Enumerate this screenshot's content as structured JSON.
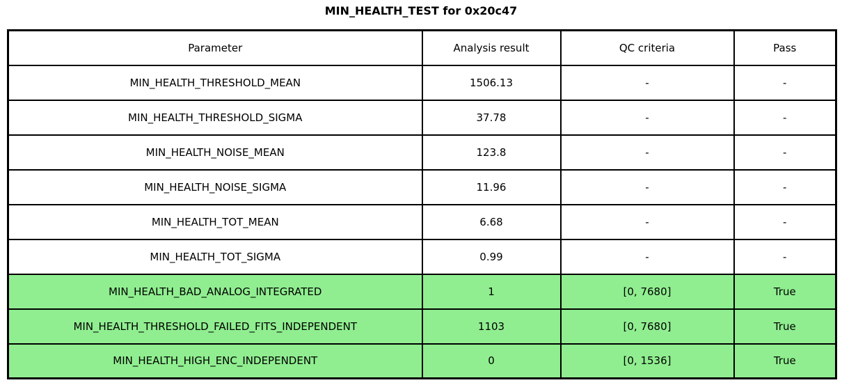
{
  "title": "MIN_HEALTH_TEST for 0x20c47",
  "chart_data": {
    "type": "table",
    "title": "MIN_HEALTH_TEST for 0x20c47",
    "columns": [
      "Parameter",
      "Analysis result",
      "QC criteria",
      "Pass"
    ],
    "rows": [
      {
        "cells": [
          "MIN_HEALTH_THRESHOLD_MEAN",
          "1506.13",
          "-",
          "-"
        ],
        "highlighted": false
      },
      {
        "cells": [
          "MIN_HEALTH_THRESHOLD_SIGMA",
          "37.78",
          "-",
          "-"
        ],
        "highlighted": false
      },
      {
        "cells": [
          "MIN_HEALTH_NOISE_MEAN",
          "123.8",
          "-",
          "-"
        ],
        "highlighted": false
      },
      {
        "cells": [
          "MIN_HEALTH_NOISE_SIGMA",
          "11.96",
          "-",
          "-"
        ],
        "highlighted": false
      },
      {
        "cells": [
          "MIN_HEALTH_TOT_MEAN",
          "6.68",
          "-",
          "-"
        ],
        "highlighted": false
      },
      {
        "cells": [
          "MIN_HEALTH_TOT_SIGMA",
          "0.99",
          "-",
          "-"
        ],
        "highlighted": false
      },
      {
        "cells": [
          "MIN_HEALTH_BAD_ANALOG_INTEGRATED",
          "1",
          "[0, 7680]",
          "True"
        ],
        "highlighted": true
      },
      {
        "cells": [
          "MIN_HEALTH_THRESHOLD_FAILED_FITS_INDEPENDENT",
          "1103",
          "[0, 7680]",
          "True"
        ],
        "highlighted": true
      },
      {
        "cells": [
          "MIN_HEALTH_HIGH_ENC_INDEPENDENT",
          "0",
          "[0, 1536]",
          "True"
        ],
        "highlighted": true
      }
    ],
    "layout": {
      "highlight_rows": [
        6,
        7,
        8
      ],
      "grid": true,
      "legend": "none"
    }
  },
  "colors": {
    "highlight_green": "#90ee90",
    "border": "#000000",
    "background": "#ffffff",
    "text": "#000000"
  }
}
